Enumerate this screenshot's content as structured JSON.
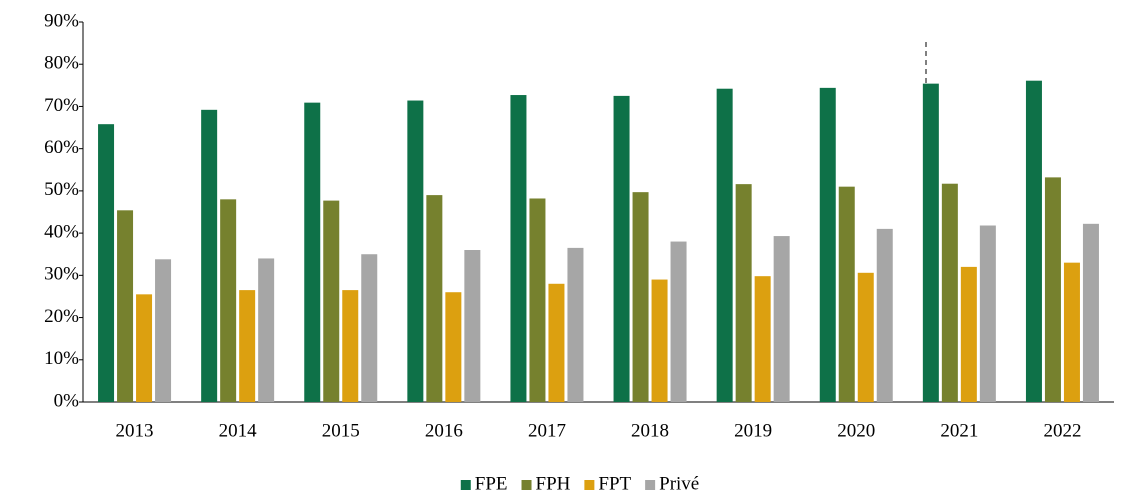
{
  "chart_data": {
    "type": "bar",
    "categories": [
      "2013",
      "2014",
      "2015",
      "2016",
      "2017",
      "2018",
      "2019",
      "2020",
      "2021",
      "2022"
    ],
    "series": [
      {
        "name": "FPE",
        "color": "#0e7148",
        "values": [
          65.8,
          69.2,
          70.9,
          71.4,
          72.7,
          72.5,
          74.2,
          74.4,
          75.4,
          76.1
        ]
      },
      {
        "name": "FPH",
        "color": "#76812e",
        "values": [
          45.4,
          48.0,
          47.7,
          49.0,
          48.2,
          49.7,
          51.6,
          51.0,
          51.7,
          53.2
        ]
      },
      {
        "name": "FPT",
        "color": "#dca010",
        "values": [
          25.5,
          26.5,
          26.5,
          26.0,
          28.0,
          29.0,
          29.8,
          30.6,
          32.0,
          33.0
        ]
      },
      {
        "name": "Privé",
        "color": "#a6a6a6",
        "values": [
          33.8,
          34.0,
          35.0,
          36.0,
          36.5,
          38.0,
          39.3,
          41.0,
          41.8,
          42.2
        ]
      }
    ],
    "ylim": [
      0,
      90
    ],
    "yticks": [
      {
        "value": 0,
        "label": "0%"
      },
      {
        "value": 10,
        "label": "10%"
      },
      {
        "value": 20,
        "label": "20%"
      },
      {
        "value": 30,
        "label": "30%"
      },
      {
        "value": 40,
        "label": "40%"
      },
      {
        "value": 50,
        "label": "50%"
      },
      {
        "value": 60,
        "label": "60%"
      },
      {
        "value": 70,
        "label": "70%"
      },
      {
        "value": 80,
        "label": "80%"
      },
      {
        "value": 90,
        "label": "90%"
      }
    ],
    "legend": "bottom"
  }
}
